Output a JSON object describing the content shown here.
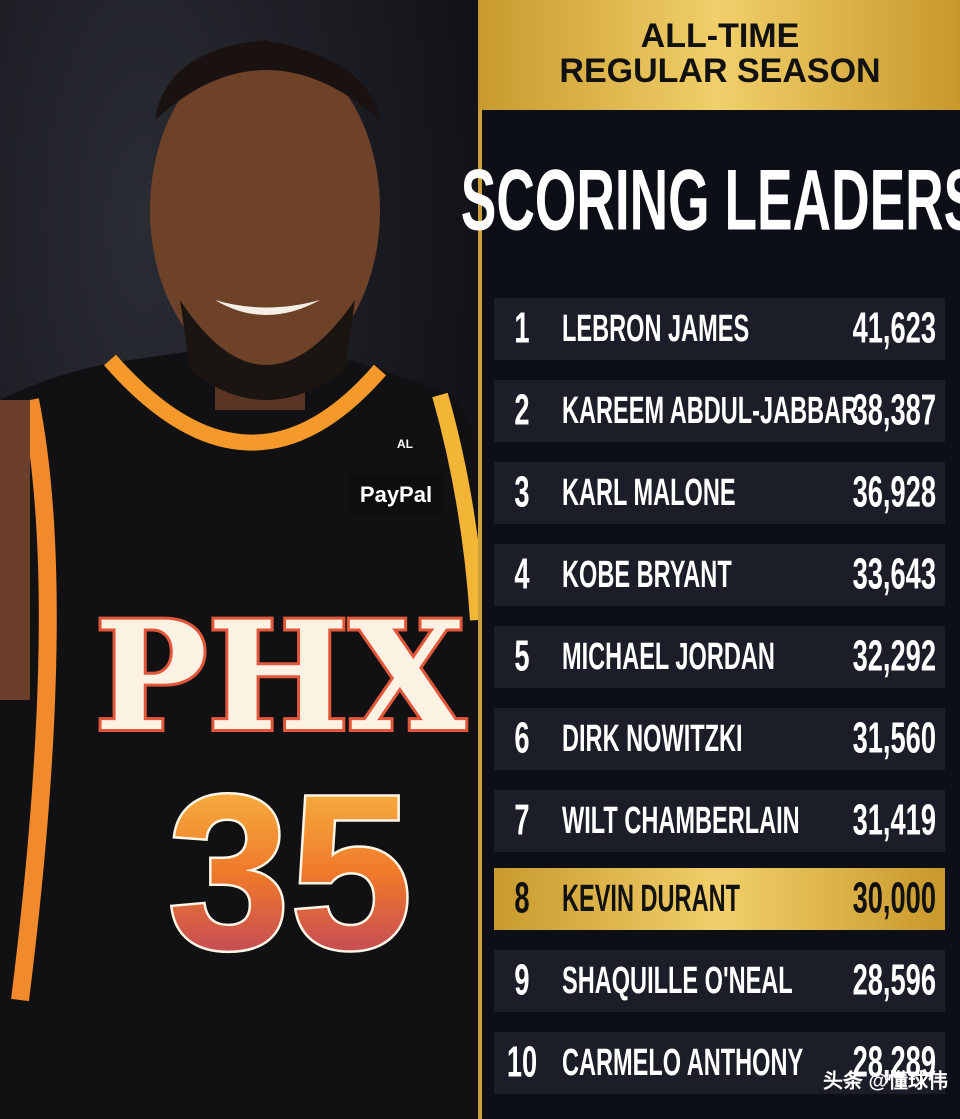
{
  "header": {
    "title_lines": [
      "ALL-TIME",
      "REGULAR SEASON"
    ],
    "heading": "SCORING LEADERS"
  },
  "photo": {
    "sponsor": "PayPal",
    "team": "PHX",
    "number": "35",
    "tag": "AL"
  },
  "table": {
    "rows": [
      [
        "1",
        "LEBRON JAMES",
        "41,623"
      ],
      [
        "2",
        "KAREEM ABDUL-JABBAR",
        "38,387"
      ],
      [
        "3",
        "KARL MALONE",
        "36,928"
      ],
      [
        "4",
        "KOBE BRYANT",
        "33,643"
      ],
      [
        "5",
        "MICHAEL JORDAN",
        "32,292"
      ],
      [
        "6",
        "DIRK NOWITZKI",
        "31,560"
      ],
      [
        "7",
        "WILT CHAMBERLAIN",
        "31,419"
      ],
      [
        "8",
        "KEVIN DURANT",
        "30,000"
      ],
      [
        "9",
        "SHAQUILLE O'NEAL",
        "28,596"
      ],
      [
        "10",
        "CARMELO ANTHONY",
        "28,289"
      ]
    ],
    "highlight_row": 7
  },
  "watermark": "头条 @懂球伟"
}
